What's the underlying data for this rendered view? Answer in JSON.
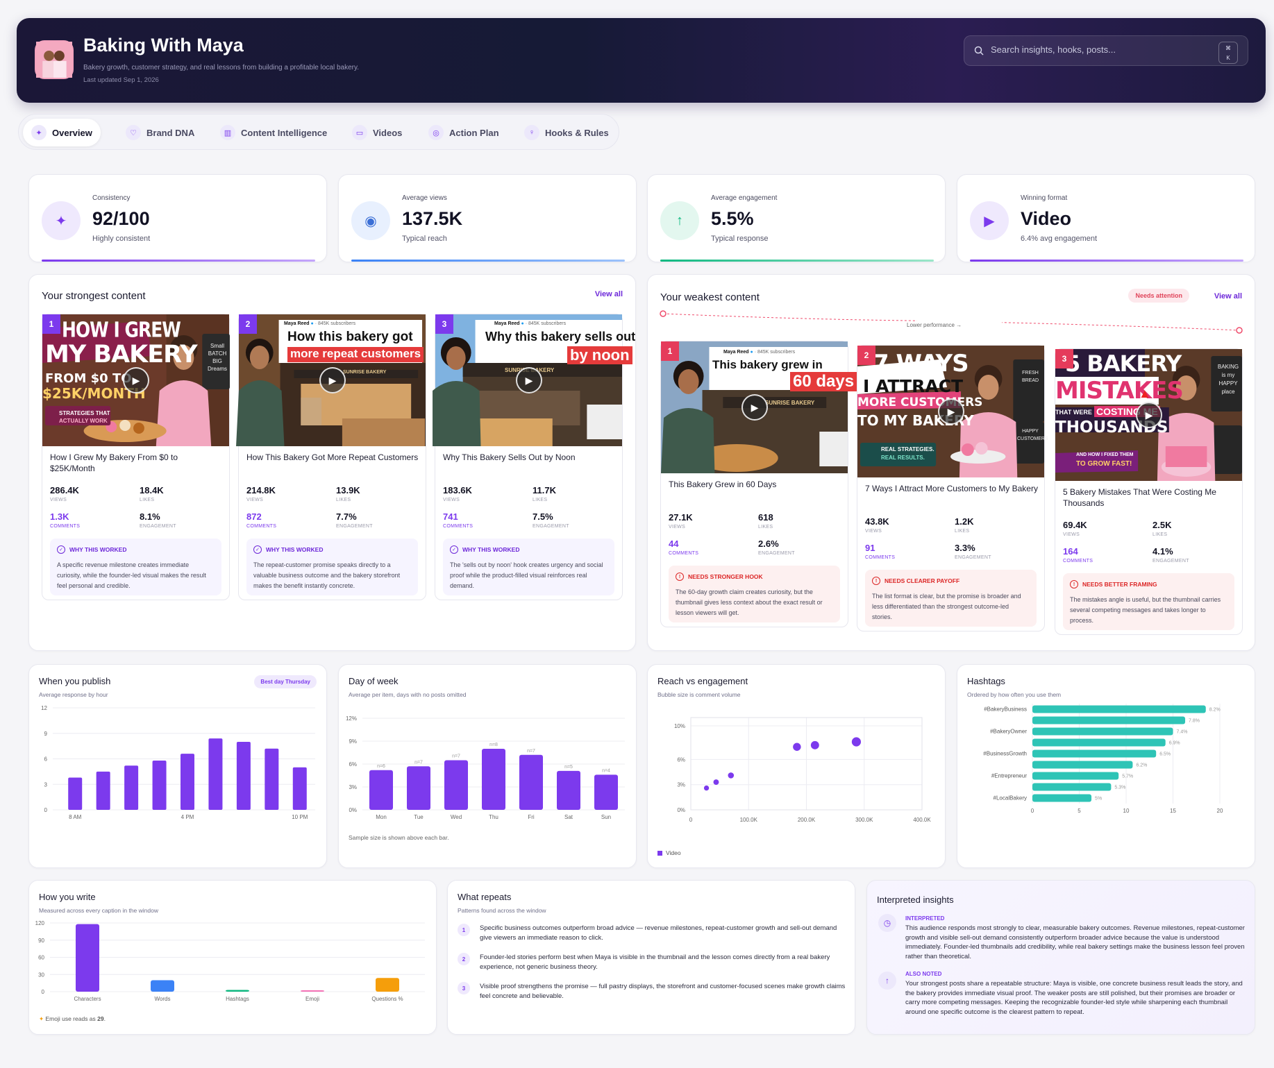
{
  "header": {
    "title": "Baking With Maya",
    "subtitle": "Bakery growth, customer strategy, and real lessons from building a profitable local bakery.",
    "updated": "Last updated Sep 1, 2026",
    "search_placeholder": "Search insights, hooks, posts...",
    "kbd_top": "⌘",
    "kbd_bottom": "K"
  },
  "tabs": [
    {
      "label": "Overview",
      "icon": "sparkle-icon",
      "active": true
    },
    {
      "label": "Brand DNA",
      "icon": "heart-icon"
    },
    {
      "label": "Content Intelligence",
      "icon": "bar-chart-icon"
    },
    {
      "label": "Videos",
      "icon": "video-icon"
    },
    {
      "label": "Action Plan",
      "icon": "target-icon"
    },
    {
      "label": "Hooks & Rules",
      "icon": "lightbulb-icon"
    }
  ],
  "kpis": [
    {
      "label": "Consistency",
      "value": "92/100",
      "sub": "Highly consistent",
      "icon": "sparkle-icon",
      "color": "#7c3aed"
    },
    {
      "label": "Average views",
      "value": "137.5K",
      "sub": "Typical reach",
      "icon": "eye-icon",
      "color": "#3b82f6"
    },
    {
      "label": "Average engagement",
      "value": "5.5%",
      "sub": "Typical response",
      "icon": "arrow-up-icon",
      "color": "#10b981"
    },
    {
      "label": "Winning format",
      "value": "Video",
      "sub": "6.4% avg engagement",
      "icon": "play-icon",
      "color": "#7c3aed"
    }
  ],
  "strongest": {
    "title": "Your strongest content",
    "view_all": "View all",
    "items": [
      {
        "rank": "1",
        "title": "How I Grew My Bakery From $0 to $25K/Month",
        "views": "286.4K",
        "likes": "18.4K",
        "comments": "1.3K",
        "engagement": "8.1%",
        "why_title": "WHY THIS WORKED",
        "why": "A specific revenue milestone creates immediate curiosity, while the founder-led visual makes the result feel personal and credible.",
        "thumb": {
          "l1": "HOW I GREW",
          "l2": "MY BAKERY",
          "l3": "FROM $0 TO",
          "l4": "$25K/MONTH",
          "l5": "STRATEGIES THAT",
          "l6": "ACTUALLY WORK",
          "sign1": "Small",
          "sign2": "BATCH",
          "sign3": "BIG",
          "sign4": "Dreams"
        }
      },
      {
        "rank": "2",
        "title": "How This Bakery Got More Repeat Customers",
        "views": "214.8K",
        "likes": "13.9K",
        "comments": "872",
        "engagement": "7.7%",
        "why_title": "WHY THIS WORKED",
        "why": "The repeat-customer promise speaks directly to a valuable business outcome and the bakery storefront makes the benefit instantly concrete.",
        "thumb": {
          "author": "Maya Reed",
          "meta": "· 845K subscribers",
          "headline": "How this bakery got",
          "highlight": "more repeat customers",
          "shop": "SUNRISE BAKERY"
        }
      },
      {
        "rank": "3",
        "title": "Why This Bakery Sells Out by Noon",
        "views": "183.6K",
        "likes": "11.7K",
        "comments": "741",
        "engagement": "7.5%",
        "why_title": "WHY THIS WORKED",
        "why": "The 'sells out by noon' hook creates urgency and social proof while the product-filled visual reinforces real demand.",
        "thumb": {
          "author": "Maya Reed",
          "meta": "· 845K subscribers",
          "headline": "Why this bakery sells out",
          "highlight": "by noon",
          "shop": "SUNRISE BAKERY"
        }
      }
    ]
  },
  "weakest": {
    "title": "Your weakest content",
    "badge": "Needs attention",
    "view_all": "View all",
    "perf_label": "Lower performance →",
    "items": [
      {
        "rank": "1",
        "title": "This Bakery Grew in 60 Days",
        "views": "27.1K",
        "likes": "618",
        "comments": "44",
        "engagement": "2.6%",
        "why_title": "NEEDS STRONGER HOOK",
        "why": "The 60-day growth claim creates curiosity, but the thumbnail gives less context about the exact result or lesson viewers will get.",
        "thumb": {
          "author": "Maya Reed",
          "meta": "· 845K subscribers",
          "headline": "This bakery grew in",
          "highlight": "60 days",
          "shop": "SUNRISE BAKERY"
        }
      },
      {
        "rank": "2",
        "title": "7 Ways I Attract More Customers to My Bakery",
        "views": "43.8K",
        "likes": "1.2K",
        "comments": "91",
        "engagement": "3.3%",
        "why_title": "NEEDS CLEARER PAYOFF",
        "why": "The list format is clear, but the promise is broader and less differentiated than the strongest outcome-led stories.",
        "thumb": {
          "l1": "7 WAYS",
          "l2": "I ATTRACT",
          "l3": "MORE CUSTOMERS",
          "l4": "TO MY BAKERY",
          "l5": "REAL STRATEGIES.",
          "l6": "REAL RESULTS.",
          "sign1": "FRESH",
          "sign2": "BREAD",
          "sign3": "HAPPY",
          "sign4": "CUSTOMERS"
        }
      },
      {
        "rank": "3",
        "title": "5 Bakery Mistakes That Were Costing Me Thousands",
        "views": "69.4K",
        "likes": "2.5K",
        "comments": "164",
        "engagement": "4.1%",
        "why_title": "NEEDS BETTER FRAMING",
        "why": "The mistakes angle is useful, but the thumbnail carries several competing messages and takes longer to process.",
        "thumb": {
          "l1": "5 BAKERY",
          "l2": "MISTAKES",
          "l3": "THAT WERE",
          "l3b": "COSTING ME",
          "l4": "THOUSANDS",
          "l5": "AND HOW I FIXED THEM",
          "l6": "TO GROW FAST!",
          "sign1": "BAKING",
          "sign2": "is my",
          "sign3": "HAPPY",
          "sign4": "place"
        }
      }
    ]
  },
  "labels": {
    "views": "VIEWS",
    "likes": "LIKES",
    "comments": "COMMENTS",
    "engagement": "ENGAGEMENT"
  },
  "publish": {
    "title": "When you publish",
    "subtitle": "Average response by hour",
    "pill": "Best day Thursday",
    "chart_data": {
      "type": "bar",
      "yticks": [
        "12",
        "9",
        "6",
        "3",
        "0"
      ],
      "ylim": [
        0,
        12
      ],
      "xticks": [
        "8 AM",
        "4 PM",
        "10 PM"
      ],
      "values": [
        3.8,
        4.5,
        5.2,
        5.8,
        6.6,
        8.4,
        8.0,
        7.2,
        5.0
      ],
      "color": "#7c3aed"
    }
  },
  "dow": {
    "title": "Day of week",
    "subtitle": "Average per item, days with no posts omitted",
    "footnote": "Sample size is shown above each bar.",
    "chart_data": {
      "type": "bar",
      "yticks": [
        "12%",
        "9%",
        "6%",
        "3%",
        "0%"
      ],
      "ylim": [
        0,
        12
      ],
      "categories": [
        "Mon",
        "Tue",
        "Wed",
        "Thu",
        "Fri",
        "Sat",
        "Sun"
      ],
      "values": [
        5.2,
        5.7,
        6.5,
        8.0,
        7.2,
        5.1,
        4.6
      ],
      "samples": [
        "n=6",
        "n=7",
        "n=7",
        "n=8",
        "n=7",
        "n=5",
        "n=4"
      ],
      "color": "#7c3aed"
    }
  },
  "reach": {
    "title": "Reach vs engagement",
    "subtitle": "Bubble size is comment volume",
    "legend": "Video",
    "chart_data": {
      "type": "scatter",
      "yticks": [
        "10%",
        "6%",
        "3%",
        "0%"
      ],
      "xticks": [
        "0",
        "100.0K",
        "200.0K",
        "300.0K",
        "400.0K"
      ],
      "xlim": [
        0,
        400000
      ],
      "ylim": [
        0,
        10
      ],
      "points": [
        [
          27100,
          2.6
        ],
        [
          43800,
          3.3
        ],
        [
          69400,
          4.1
        ],
        [
          183600,
          7.5
        ],
        [
          214800,
          7.7
        ],
        [
          286400,
          8.1
        ]
      ],
      "sizes": [
        44,
        91,
        164,
        741,
        872,
        1300
      ],
      "color": "#7c3aed"
    }
  },
  "hashtags": {
    "title": "Hashtags",
    "subtitle": "Ordered by how often you use them",
    "chart_data": {
      "type": "bar",
      "orientation": "horizontal",
      "xticks": [
        "0",
        "5",
        "10",
        "15",
        "20"
      ],
      "xlim": [
        0,
        20
      ],
      "labels": [
        "#BakeryBusiness",
        "",
        "#BakeryOwner",
        "",
        "#BusinessGrowth",
        "",
        "#Entrepreneur",
        "",
        "#LocalBakery"
      ],
      "values": [
        18.5,
        16.3,
        15.0,
        14.2,
        13.2,
        10.7,
        9.2,
        8.4,
        6.3
      ],
      "annotations": [
        "8.2%",
        "7.8%",
        "7.4%",
        "6.9%",
        "6.5%",
        "6.2%",
        "5.7%",
        "5.3%",
        "5%"
      ],
      "color": "#2ec4b6"
    }
  },
  "writing": {
    "title": "How you write",
    "subtitle": "Measured across every caption in the window",
    "note_prefix": "Emoji use reads as",
    "note_value": "29",
    "chart_data": {
      "type": "bar",
      "yticks": [
        "120",
        "90",
        "60",
        "30",
        "0"
      ],
      "ylim": [
        0,
        120
      ],
      "categories": [
        "Characters",
        "Words",
        "Hashtags",
        "Emoji",
        "Questions %"
      ],
      "values": [
        118,
        20,
        3,
        1,
        24
      ],
      "colors": [
        "#7c3aed",
        "#3b82f6",
        "#10b981",
        "#f472b6",
        "#f59e0b"
      ]
    }
  },
  "repeats": {
    "title": "What repeats",
    "subtitle": "Patterns found across the window",
    "items": [
      {
        "n": "1",
        "text": "Specific business outcomes outperform broad advice — revenue milestones, repeat-customer growth and sell-out demand give viewers an immediate reason to click."
      },
      {
        "n": "2",
        "text": "Founder-led stories perform best when Maya is visible in the thumbnail and the lesson comes directly from a real bakery experience, not generic business theory."
      },
      {
        "n": "3",
        "text": "Visible proof strengthens the promise — full pastry displays, the storefront and customer-focused scenes make growth claims feel concrete and believable."
      }
    ]
  },
  "insights": {
    "title": "Interpreted insights",
    "items": [
      {
        "head": "INTERPRETED",
        "icon": "clock-icon",
        "text": "This audience responds most strongly to clear, measurable bakery outcomes. Revenue milestones, repeat-customer growth and visible sell-out demand consistently outperform broader advice because the value is understood immediately. Founder-led thumbnails add credibility, while real bakery settings make the business lesson feel proven rather than theoretical."
      },
      {
        "head": "ALSO NOTED",
        "icon": "arrow-up-icon",
        "text": "Your strongest posts share a repeatable structure: Maya is visible, one concrete business result leads the story, and the bakery provides immediate visual proof. The weaker posts are still polished, but their promises are broader or carry more competing messages. Keeping the recognizable founder-led style while sharpening each thumbnail around one specific outcome is the clearest pattern to repeat."
      }
    ]
  }
}
